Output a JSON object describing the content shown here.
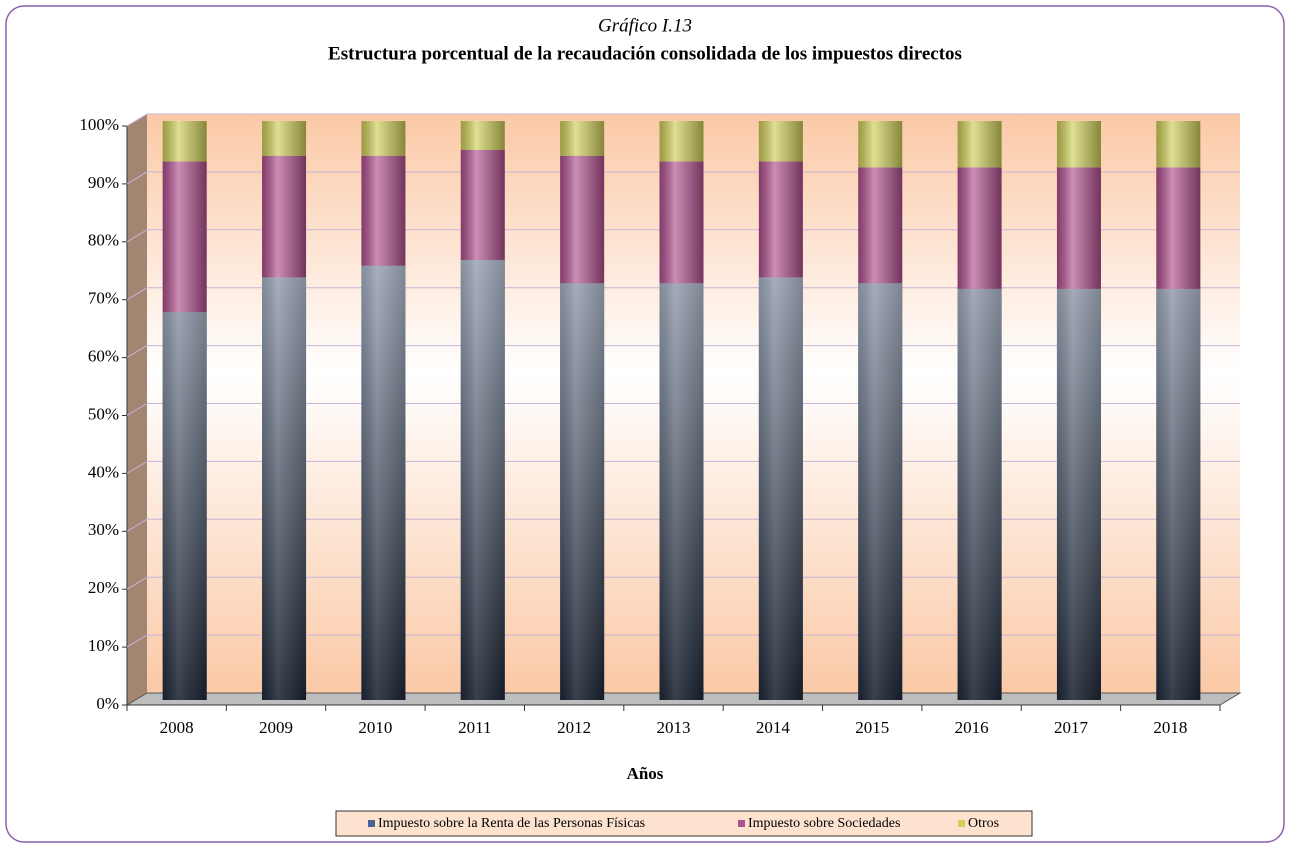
{
  "chart_data": {
    "type": "stacked_bar",
    "title": "Estructura porcentual de la recaudación consolidada de los impuestos directos",
    "subtitle": "Gráfico I.13",
    "x_label": "Años",
    "categories": [
      "2008",
      "2009",
      "2010",
      "2011",
      "2012",
      "2013",
      "2014",
      "2015",
      "2016",
      "2017",
      "2018"
    ],
    "series": [
      {
        "name": "Impuesto sobre la Renta de las Personas Físicas",
        "color": "#4a6594",
        "values": [
          67,
          73,
          75,
          76,
          72,
          72,
          73,
          72,
          71,
          71,
          71
        ]
      },
      {
        "name": "Impuesto sobre Sociedades",
        "color": "#b0508e",
        "values": [
          26,
          21,
          19,
          19,
          22,
          21,
          20,
          20,
          21,
          21,
          21
        ]
      },
      {
        "name": "Otros",
        "color": "#cfcf5a",
        "values": [
          7,
          6,
          6,
          5,
          6,
          7,
          7,
          8,
          8,
          8,
          8
        ]
      }
    ],
    "ylim": [
      0,
      100
    ],
    "yticks": [
      {
        "value": 0,
        "label": "0%"
      },
      {
        "value": 10,
        "label": "10%"
      },
      {
        "value": 20,
        "label": "20%"
      },
      {
        "value": 30,
        "label": "30%"
      },
      {
        "value": 40,
        "label": "40%"
      },
      {
        "value": 50,
        "label": "50%"
      },
      {
        "value": 60,
        "label": "60%"
      },
      {
        "value": 70,
        "label": "70%"
      },
      {
        "value": 80,
        "label": "80%"
      },
      {
        "value": 90,
        "label": "90%"
      },
      {
        "value": 100,
        "label": "100%"
      }
    ],
    "grid": true,
    "legend": "bottom"
  }
}
